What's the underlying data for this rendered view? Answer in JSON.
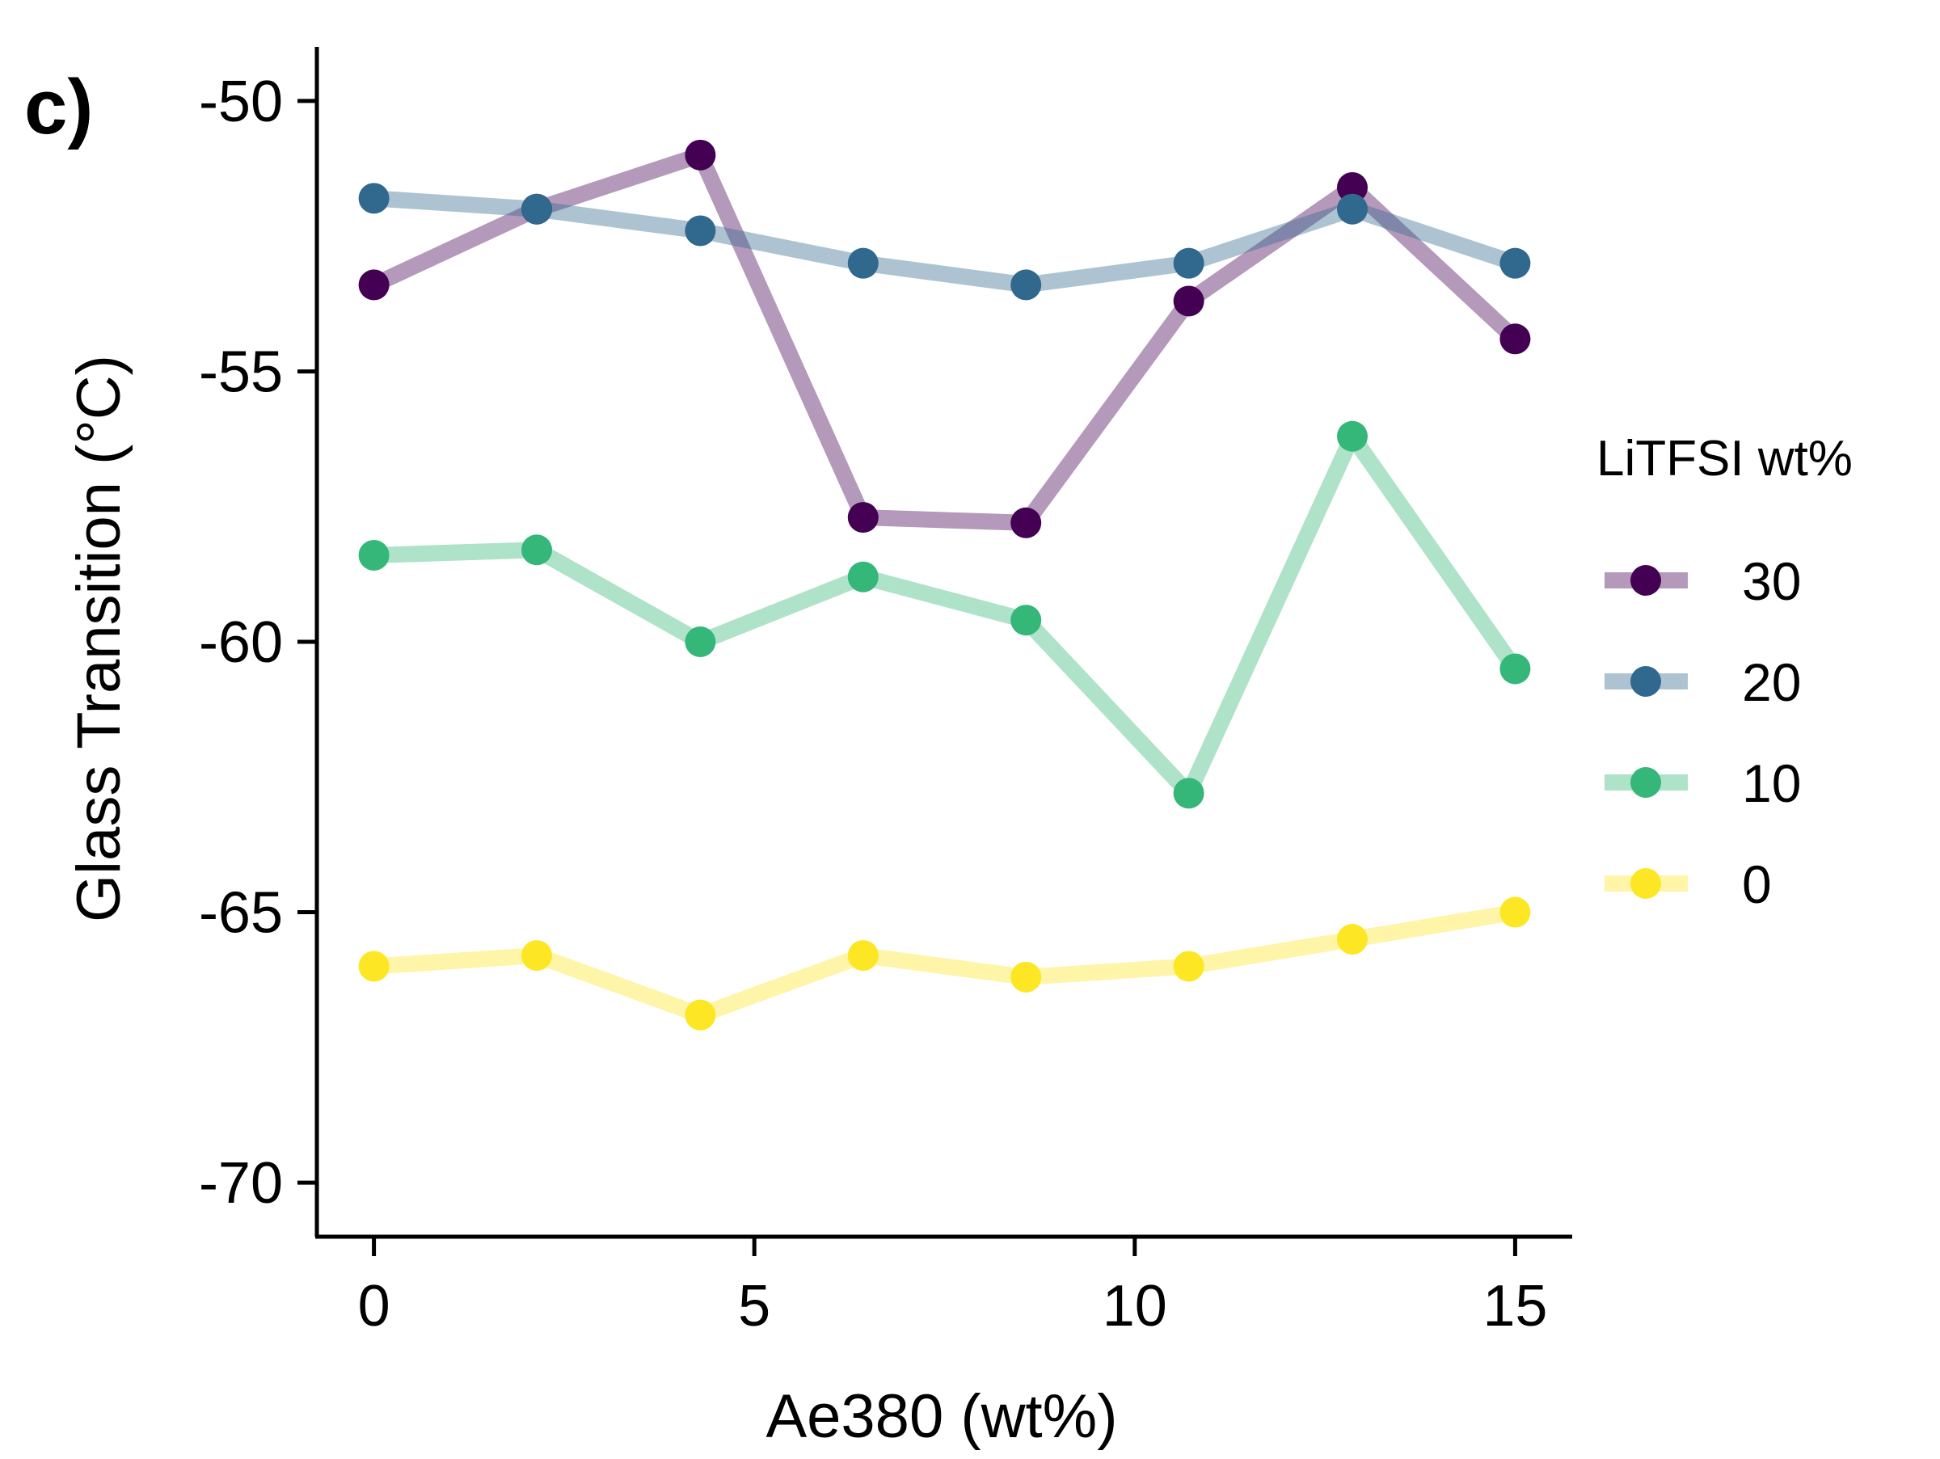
{
  "panel_label": "c)",
  "chart_data": {
    "type": "line",
    "title": "",
    "xlabel": "Ae380 (wt%)",
    "ylabel": "Glass Transition (°C)",
    "xlim": [
      -0.75,
      15.75
    ],
    "ylim": [
      -71,
      -49
    ],
    "xticks": [
      0,
      5,
      10,
      15
    ],
    "xtick_labels": [
      "0",
      "5",
      "10",
      "15"
    ],
    "yticks": [
      -70,
      -65,
      -60,
      -55,
      -50
    ],
    "ytick_labels": [
      "-70",
      "-65",
      "-60",
      "-55",
      "-50"
    ],
    "x": [
      0,
      2.14,
      4.29,
      6.43,
      8.57,
      10.71,
      12.86,
      15
    ],
    "grid": false,
    "legend": {
      "title": "LiTFSI wt%",
      "position": "right"
    },
    "series": [
      {
        "name": "30",
        "color": "#440154",
        "values": [
          -53.4,
          -52.0,
          -51.0,
          -57.7,
          -57.8,
          -53.7,
          -51.6,
          -54.4
        ]
      },
      {
        "name": "20",
        "color": "#31688e",
        "values": [
          -51.8,
          -52.0,
          -52.4,
          -53.0,
          -53.4,
          -53.0,
          -52.0,
          -53.0
        ]
      },
      {
        "name": "10",
        "color": "#35b779",
        "values": [
          -58.4,
          -58.3,
          -60.0,
          -58.8,
          -59.6,
          -62.8,
          -56.2,
          -60.5
        ]
      },
      {
        "name": "0",
        "color": "#fde725",
        "values": [
          -66.0,
          -65.8,
          -66.9,
          -65.8,
          -66.2,
          -66.0,
          -65.5,
          -65.0
        ]
      }
    ]
  }
}
